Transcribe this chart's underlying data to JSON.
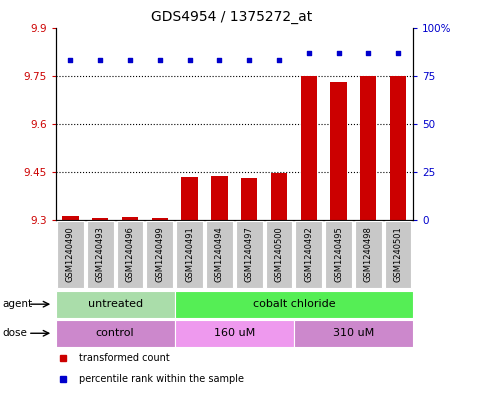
{
  "title": "GDS4954 / 1375272_at",
  "samples": [
    "GSM1240490",
    "GSM1240493",
    "GSM1240496",
    "GSM1240499",
    "GSM1240491",
    "GSM1240494",
    "GSM1240497",
    "GSM1240500",
    "GSM1240492",
    "GSM1240495",
    "GSM1240498",
    "GSM1240501"
  ],
  "bar_values": [
    9.312,
    9.308,
    9.311,
    9.308,
    9.435,
    9.438,
    9.432,
    9.448,
    9.75,
    9.73,
    9.75,
    9.75
  ],
  "percentile_values": [
    83,
    83,
    83,
    83,
    83,
    83,
    83,
    83,
    87,
    87,
    87,
    87
  ],
  "ylim": [
    9.3,
    9.9
  ],
  "yticks": [
    9.3,
    9.45,
    9.6,
    9.75,
    9.9
  ],
  "ytick_labels": [
    "9.3",
    "9.45",
    "9.6",
    "9.75",
    "9.9"
  ],
  "right_yticks": [
    0,
    25,
    50,
    75,
    100
  ],
  "right_ytick_labels": [
    "0",
    "25",
    "50",
    "75",
    "100%"
  ],
  "hlines": [
    9.75,
    9.6,
    9.45
  ],
  "bar_color": "#cc0000",
  "dot_color": "#0000cc",
  "bar_bottom": 9.3,
  "agent_groups": [
    {
      "label": "untreated",
      "start": 0,
      "end": 4,
      "color": "#aaddaa"
    },
    {
      "label": "cobalt chloride",
      "start": 4,
      "end": 12,
      "color": "#55ee55"
    }
  ],
  "dose_groups": [
    {
      "label": "control",
      "start": 0,
      "end": 4,
      "color": "#cc88cc"
    },
    {
      "label": "160 uM",
      "start": 4,
      "end": 8,
      "color": "#ee99ee"
    },
    {
      "label": "310 uM",
      "start": 8,
      "end": 12,
      "color": "#cc88cc"
    }
  ],
  "legend_items": [
    {
      "color": "#cc0000",
      "label": "transformed count"
    },
    {
      "color": "#0000cc",
      "label": "percentile rank within the sample"
    }
  ],
  "title_fontsize": 10,
  "tick_fontsize": 7.5,
  "sample_fontsize": 6,
  "group_fontsize": 8,
  "left_tick_color": "#cc0000",
  "right_tick_color": "#0000cc",
  "bar_width": 0.55,
  "box_color": "#c8c8c8"
}
